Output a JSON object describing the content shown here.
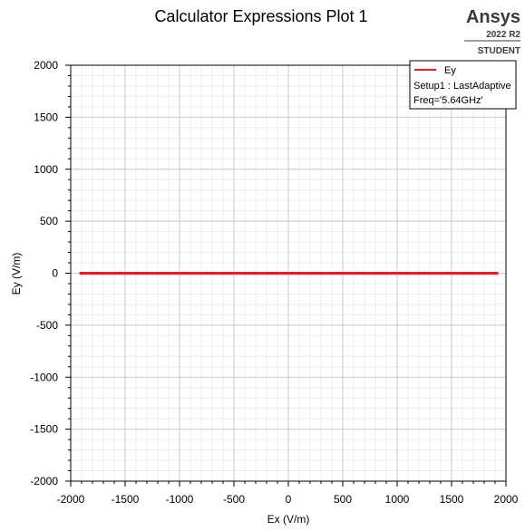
{
  "branding": {
    "product": "Ansys",
    "version": "2022 R2",
    "edition": "STUDENT"
  },
  "chart_data": {
    "type": "line",
    "title": "Calculator Expressions Plot 1",
    "xlabel": "Ex (V/m)",
    "ylabel": "Ey (V/m)",
    "xlim": [
      -2000,
      2000
    ],
    "ylim": [
      -2000,
      2000
    ],
    "x_major_ticks": [
      -2000,
      -1500,
      -1000,
      -500,
      0,
      500,
      1000,
      1500,
      2000
    ],
    "y_major_ticks": [
      -2000,
      -1500,
      -1000,
      -500,
      0,
      500,
      1000,
      1500,
      2000
    ],
    "x_minor_step": 100,
    "y_minor_step": 100,
    "grid": true,
    "legend_position": "top-right",
    "legend": {
      "entry": "Ey",
      "lines": [
        "Setup1 : LastAdaptive",
        "Freq='5.64GHz'"
      ]
    },
    "series": [
      {
        "name": "Ey",
        "color": "#e0202a",
        "x": [
          -1920,
          1930
        ],
        "y": [
          0,
          0
        ]
      }
    ]
  }
}
